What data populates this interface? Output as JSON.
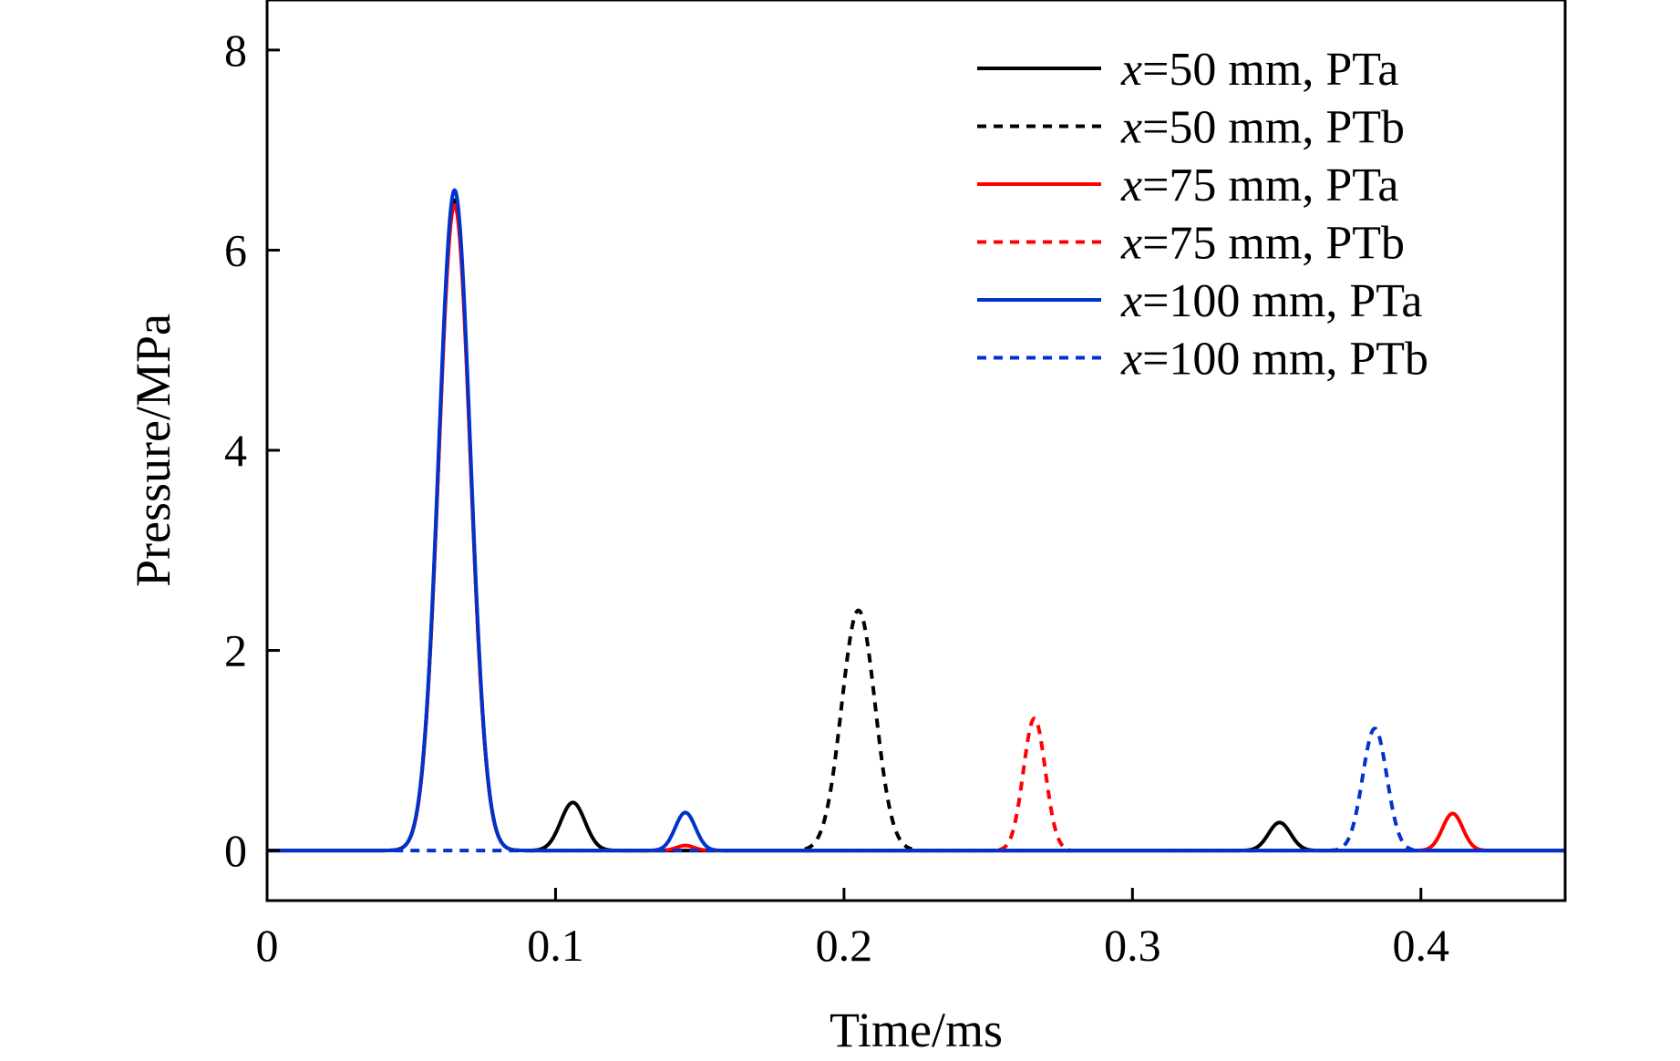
{
  "chart_data": {
    "type": "line",
    "title": "",
    "xlabel": "Time/ms",
    "ylabel": "Pressure/MPa",
    "xlim": [
      0,
      0.45
    ],
    "ylim": [
      -0.5,
      8.5
    ],
    "xticks": [
      0,
      0.1,
      0.2,
      0.3,
      0.4
    ],
    "xtick_labels": [
      "0",
      "0.1",
      "0.2",
      "0.3",
      "0.4"
    ],
    "yticks": [
      0,
      2,
      4,
      6,
      8
    ],
    "ytick_labels": [
      "0",
      "2",
      "4",
      "6",
      "8"
    ],
    "grid": false,
    "legend_position": "top-right",
    "series": [
      {
        "name": "x=50 mm, PTa",
        "legend_var": "x",
        "legend_rest": "=50 mm, PTa",
        "color": "#000000",
        "dash": "solid",
        "peaks": [
          {
            "t": 0.065,
            "height": 6.5,
            "width": 0.0055
          },
          {
            "t": 0.106,
            "height": 0.48,
            "width": 0.0042
          },
          {
            "t": 0.351,
            "height": 0.28,
            "width": 0.0038
          }
        ]
      },
      {
        "name": "x=50 mm, PTb",
        "legend_var": "x",
        "legend_rest": "=50 mm, PTb",
        "color": "#000000",
        "dash": "dotted",
        "peaks": [
          {
            "t": 0.205,
            "height": 2.4,
            "width": 0.0058
          }
        ]
      },
      {
        "name": "x=75 mm, PTa",
        "legend_var": "x",
        "legend_rest": "=75 mm, PTa",
        "color": "#ff0000",
        "dash": "solid",
        "peaks": [
          {
            "t": 0.065,
            "height": 6.45,
            "width": 0.0055
          },
          {
            "t": 0.145,
            "height": 0.05,
            "width": 0.003
          },
          {
            "t": 0.411,
            "height": 0.37,
            "width": 0.0035
          }
        ]
      },
      {
        "name": "x=75 mm, PTb",
        "legend_var": "x",
        "legend_rest": "=75 mm, PTb",
        "color": "#ff0000",
        "dash": "dotted",
        "peaks": [
          {
            "t": 0.266,
            "height": 1.32,
            "width": 0.0038
          }
        ]
      },
      {
        "name": "x=100 mm, PTa",
        "legend_var": "x",
        "legend_rest": "=100 mm, PTa",
        "color": "#0033cc",
        "dash": "solid",
        "peaks": [
          {
            "t": 0.065,
            "height": 6.6,
            "width": 0.0055
          },
          {
            "t": 0.145,
            "height": 0.38,
            "width": 0.0035
          }
        ]
      },
      {
        "name": "x=100 mm, PTb",
        "legend_var": "x",
        "legend_rest": "=100 mm, PTb",
        "color": "#0033cc",
        "dash": "dotted",
        "peaks": [
          {
            "t": 0.384,
            "height": 1.22,
            "width": 0.0042
          }
        ]
      }
    ]
  }
}
